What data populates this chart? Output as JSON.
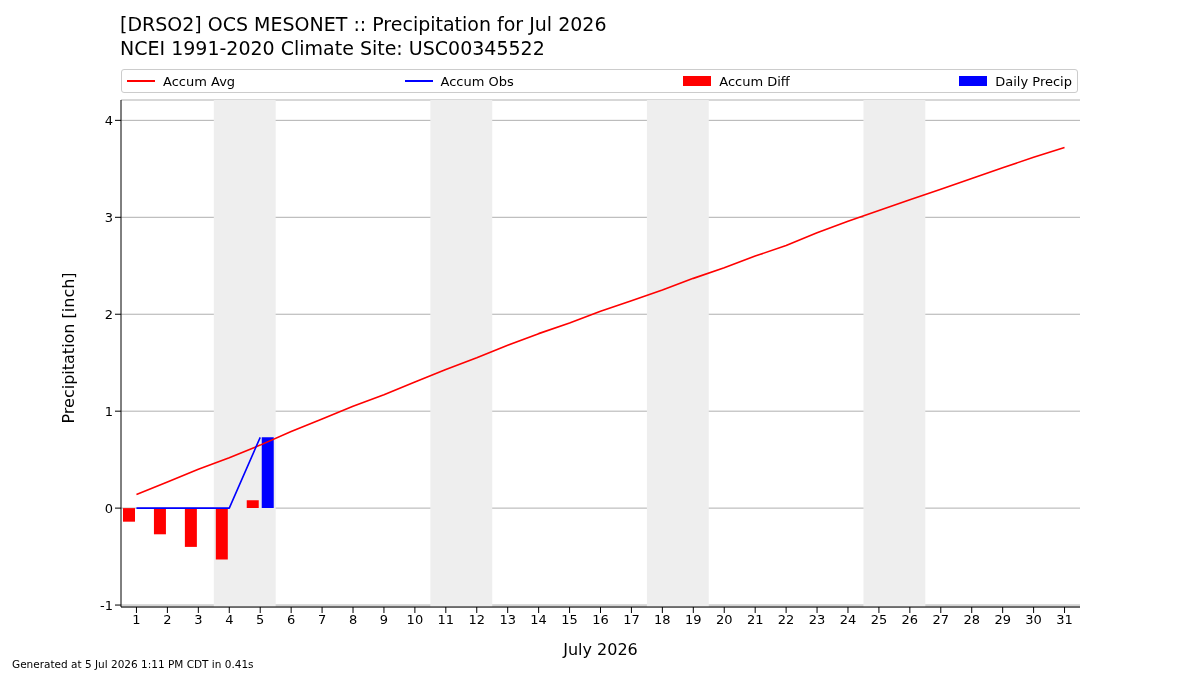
{
  "chart_data": {
    "type": "line",
    "title": "[DRSO2] OCS MESONET :: Precipitation for Jul 2026",
    "subtitle": "NCEI 1991-2020 Climate Site: USC00345522",
    "xlabel": "July 2026",
    "ylabel": "Precipitation [inch]",
    "annotations": [
      "Generated at 5 Jul 2026 1:11 PM CDT in 0.41s"
    ],
    "x": [
      1,
      2,
      3,
      4,
      5,
      6,
      7,
      8,
      9,
      10,
      11,
      12,
      13,
      14,
      15,
      16,
      17,
      18,
      19,
      20,
      21,
      22,
      23,
      24,
      25,
      26,
      27,
      28,
      29,
      30,
      31
    ],
    "series": [
      {
        "name": "Accum Avg",
        "color": "#ff0000",
        "values": [
          0.14,
          0.27,
          0.4,
          0.52,
          0.65,
          0.79,
          0.92,
          1.05,
          1.17,
          1.3,
          1.43,
          1.55,
          1.68,
          1.8,
          1.91,
          2.03,
          2.14,
          2.25,
          2.37,
          2.48,
          2.6,
          2.71,
          2.84,
          2.96,
          3.07,
          3.18,
          3.29,
          3.4,
          3.51,
          3.62,
          3.72
        ]
      },
      {
        "name": "Accum Obs",
        "color": "#0000ff",
        "x": [
          1,
          2,
          3,
          4,
          5
        ],
        "values": [
          0,
          0,
          0,
          0,
          0.73
        ]
      },
      {
        "name": "Accum Diff",
        "type": "bar",
        "color": "#ff0000",
        "x": [
          1,
          2,
          3,
          4,
          5
        ],
        "values": [
          -0.14,
          -0.27,
          -0.4,
          -0.53,
          0.08
        ]
      },
      {
        "name": "Daily Precip",
        "type": "bar",
        "color": "#0000ff",
        "x": [
          1,
          2,
          3,
          4,
          5
        ],
        "values": [
          0,
          0,
          0,
          0,
          0.73
        ]
      }
    ],
    "xlim": [
      0.5,
      31.5
    ],
    "xticks": [
      1,
      2,
      3,
      4,
      5,
      6,
      7,
      8,
      9,
      10,
      11,
      12,
      13,
      14,
      15,
      16,
      17,
      18,
      19,
      20,
      21,
      22,
      23,
      24,
      25,
      26,
      27,
      28,
      29,
      30,
      31
    ],
    "ylim": [
      -1.02,
      4.21
    ],
    "yticks": [
      -1,
      0,
      1,
      2,
      3,
      4
    ],
    "bands": [
      {
        "axis": "x",
        "from": 3.5,
        "to": 5.5,
        "color": "#eeeeee"
      },
      {
        "axis": "x",
        "from": 10.5,
        "to": 12.5,
        "color": "#eeeeee"
      },
      {
        "axis": "x",
        "from": 17.5,
        "to": 19.5,
        "color": "#eeeeee"
      },
      {
        "axis": "x",
        "from": 24.5,
        "to": 26.5,
        "color": "#eeeeee"
      }
    ],
    "grid": "y",
    "legend": "top",
    "marker": "none"
  }
}
